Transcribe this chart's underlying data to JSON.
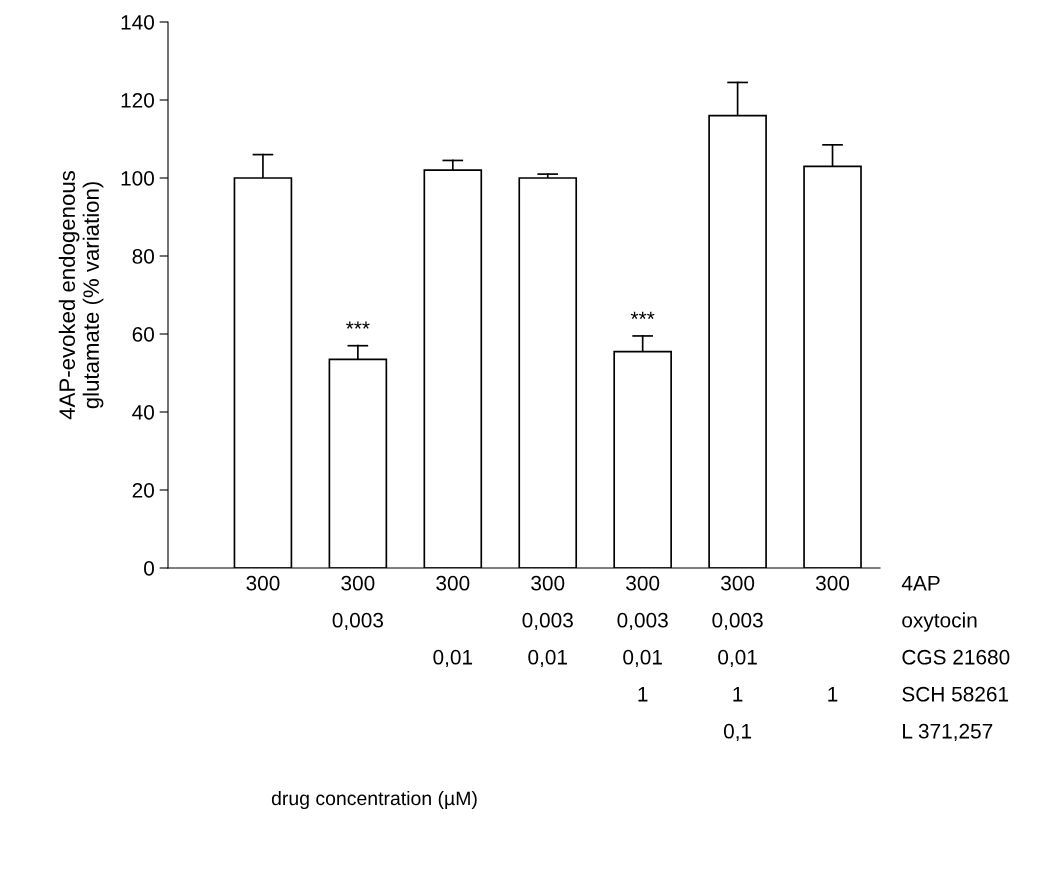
{
  "chart_data": [
    {
      "type": "bar",
      "ylabel": "4AP-evoked endogenous\nglutamate (% variation)",
      "categories": [
        null,
        null,
        null,
        null,
        null,
        null,
        null
      ],
      "values": [
        100,
        53.5,
        102,
        100,
        55.5,
        116,
        103
      ],
      "errors": [
        [
          100,
          106
        ],
        [
          53.5,
          57
        ],
        [
          102,
          104.5
        ],
        [
          100,
          101
        ],
        [
          55.5,
          59.5
        ],
        [
          116,
          124.5
        ],
        [
          103,
          108.5
        ]
      ],
      "value_labels": [
        null,
        "***",
        null,
        null,
        "***",
        null,
        null
      ],
      "color": "#ffffff",
      "ylim": [
        0,
        140
      ],
      "yticks": [
        0,
        20,
        40,
        60,
        80,
        100,
        120,
        140
      ],
      "grid": false,
      "legend": false
    },
    {
      "type": "other",
      "xlabel": "drug concentration (µM)",
      "y2_categories": [
        "4AP",
        "oxytocin",
        "CGS 21680",
        "SCH 58261",
        "L 371,257"
      ],
      "cell_labels": [
        [
          "300",
          "300",
          "300",
          "300",
          "300",
          "300",
          "300"
        ],
        [
          null,
          "0,003",
          null,
          "0,003",
          "0,003",
          "0,003",
          null
        ],
        [
          null,
          null,
          "0,01",
          "0,01",
          "0,01",
          "0,01",
          null
        ],
        [
          null,
          null,
          null,
          null,
          "1",
          "1",
          "1"
        ],
        [
          null,
          null,
          null,
          null,
          null,
          "0,1",
          null
        ]
      ]
    }
  ]
}
